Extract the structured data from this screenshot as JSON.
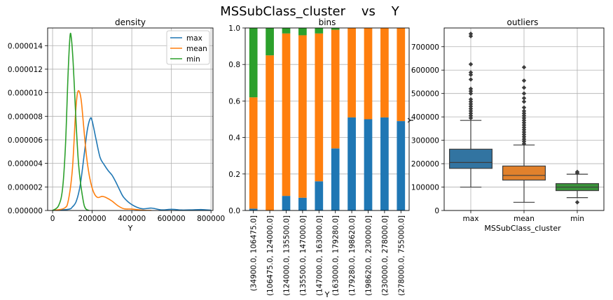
{
  "figure": {
    "suptitle": "MSSubClass_cluster    vs    Y"
  },
  "colors": {
    "max": "#1f77b4",
    "mean": "#ff7f0e",
    "min": "#2ca02c",
    "grid": "#b0b0b0"
  },
  "chart_data": [
    {
      "type": "line",
      "title": "density",
      "xlabel": "Y",
      "ylabel": "",
      "xlim": [
        -25000,
        810000
      ],
      "ylim": [
        0,
        1.55e-05
      ],
      "xticks": [
        "0",
        "200000",
        "400000",
        "600000",
        "800000"
      ],
      "yticks": [
        "0.000000",
        "0.000002",
        "0.000004",
        "0.000006",
        "0.000008",
        "0.000010",
        "0.000012",
        "0.000014"
      ],
      "grid": true,
      "legend": "top-right",
      "series": [
        {
          "name": "max",
          "x": [
            0,
            80000,
            100000,
            120000,
            140000,
            160000,
            175000,
            190000,
            200000,
            220000,
            240000,
            260000,
            280000,
            300000,
            320000,
            340000,
            360000,
            400000,
            450000,
            500000,
            550000,
            600000,
            650000,
            700000,
            750000,
            800000
          ],
          "y": [
            0.0,
            1e-07,
            3e-07,
            8e-07,
            2.2e-06,
            4.8e-06,
            6.8e-06,
            7.8e-06,
            7.6e-06,
            6e-06,
            4.5e-06,
            3.9e-06,
            3.4e-06,
            3e-06,
            2.4e-06,
            1.7e-06,
            1.1e-06,
            5e-07,
            1.5e-07,
            2e-07,
            5e-08,
            1e-07,
            4e-08,
            5e-08,
            8e-08,
            2e-08
          ]
        },
        {
          "name": "mean",
          "x": [
            0,
            60000,
            80000,
            100000,
            115000,
            125000,
            135000,
            145000,
            155000,
            170000,
            185000,
            200000,
            215000,
            230000,
            250000,
            270000,
            300000,
            330000,
            360000,
            400000,
            450000,
            500000
          ],
          "y": [
            0.0,
            2e-07,
            9e-07,
            3.5e-06,
            8e-06,
            9.9e-06,
            1.01e-05,
            9.3e-06,
            7.5e-06,
            4.8e-06,
            3e-06,
            1.9e-06,
            1.3e-06,
            1.1e-06,
            1.2e-06,
            1.1e-06,
            8e-07,
            4e-07,
            1.5e-07,
            1.2e-07,
            3e-08,
            0.0
          ]
        },
        {
          "name": "min",
          "x": [
            0,
            30000,
            50000,
            65000,
            78000,
            88000,
            95000,
            103000,
            110000,
            120000,
            130000,
            140000,
            150000,
            160000,
            170000,
            185000
          ],
          "y": [
            0.0,
            4e-07,
            1.8e-06,
            5.5e-06,
            1.15e-05,
            1.48e-05,
            1.46e-05,
            1.28e-05,
            1.05e-05,
            7e-06,
            4.2e-06,
            2.5e-06,
            1.3e-06,
            4e-07,
            1e-07,
            0.0
          ]
        }
      ]
    },
    {
      "type": "bar",
      "title": "bins",
      "xlabel": "Y",
      "ylabel": "",
      "stacked": true,
      "ylim": [
        0,
        1.0
      ],
      "yticks": [
        "0.0",
        "0.2",
        "0.4",
        "0.6",
        "0.8",
        "1.0"
      ],
      "grid": true,
      "side_label": "Y",
      "categories": [
        "(34900.0, 106475.0]",
        "(106475.0, 124000.0]",
        "(124000.0, 135500.0]",
        "(135500.0, 147000.0]",
        "(147000.0, 163000.0]",
        "(163000.0, 179280.0]",
        "(179280.0, 198620.0]",
        "(198620.0, 230000.0]",
        "(230000.0, 278000.0]",
        "(278000.0, 755000.0]"
      ],
      "series": [
        {
          "name": "max",
          "values": [
            0.01,
            0.0,
            0.08,
            0.07,
            0.16,
            0.34,
            0.51,
            0.5,
            0.51,
            0.49
          ]
        },
        {
          "name": "mean",
          "values": [
            0.61,
            0.85,
            0.89,
            0.89,
            0.81,
            0.65,
            0.49,
            0.5,
            0.49,
            0.51
          ]
        },
        {
          "name": "min",
          "values": [
            0.38,
            0.15,
            0.03,
            0.04,
            0.03,
            0.01,
            0.0,
            0.0,
            0.0,
            0.0
          ]
        }
      ]
    },
    {
      "type": "box",
      "title": "outliers",
      "xlabel": "MSSubClass_cluster",
      "ylabel": "",
      "ylim": [
        0,
        780000
      ],
      "yticks": [
        "0",
        "100000",
        "200000",
        "300000",
        "400000",
        "500000",
        "600000",
        "700000"
      ],
      "grid": true,
      "categories": [
        "max",
        "mean",
        "min"
      ],
      "boxes": [
        {
          "name": "max",
          "whisker_low": 100000,
          "q1": 180000,
          "median": 205000,
          "q3": 262000,
          "whisker_high": 385000,
          "outliers": [
            395000,
            405000,
            415000,
            425000,
            435000,
            445000,
            455000,
            465000,
            475000,
            500000,
            510000,
            520000,
            560000,
            580000,
            590000,
            625000,
            745000,
            755000
          ]
        },
        {
          "name": "mean",
          "whisker_low": 35000,
          "q1": 130000,
          "median": 150000,
          "q3": 190000,
          "whisker_high": 280000,
          "outliers": [
            285000,
            295000,
            305000,
            315000,
            325000,
            335000,
            345000,
            355000,
            365000,
            375000,
            385000,
            395000,
            405000,
            415000,
            425000,
            440000,
            465000,
            480000,
            500000,
            525000,
            555000,
            612000
          ]
        },
        {
          "name": "min",
          "whisker_low": 55000,
          "q1": 85000,
          "median": 100000,
          "q3": 115000,
          "whisker_high": 155000,
          "outliers": [
            35000,
            160000,
            165000
          ]
        }
      ]
    }
  ]
}
